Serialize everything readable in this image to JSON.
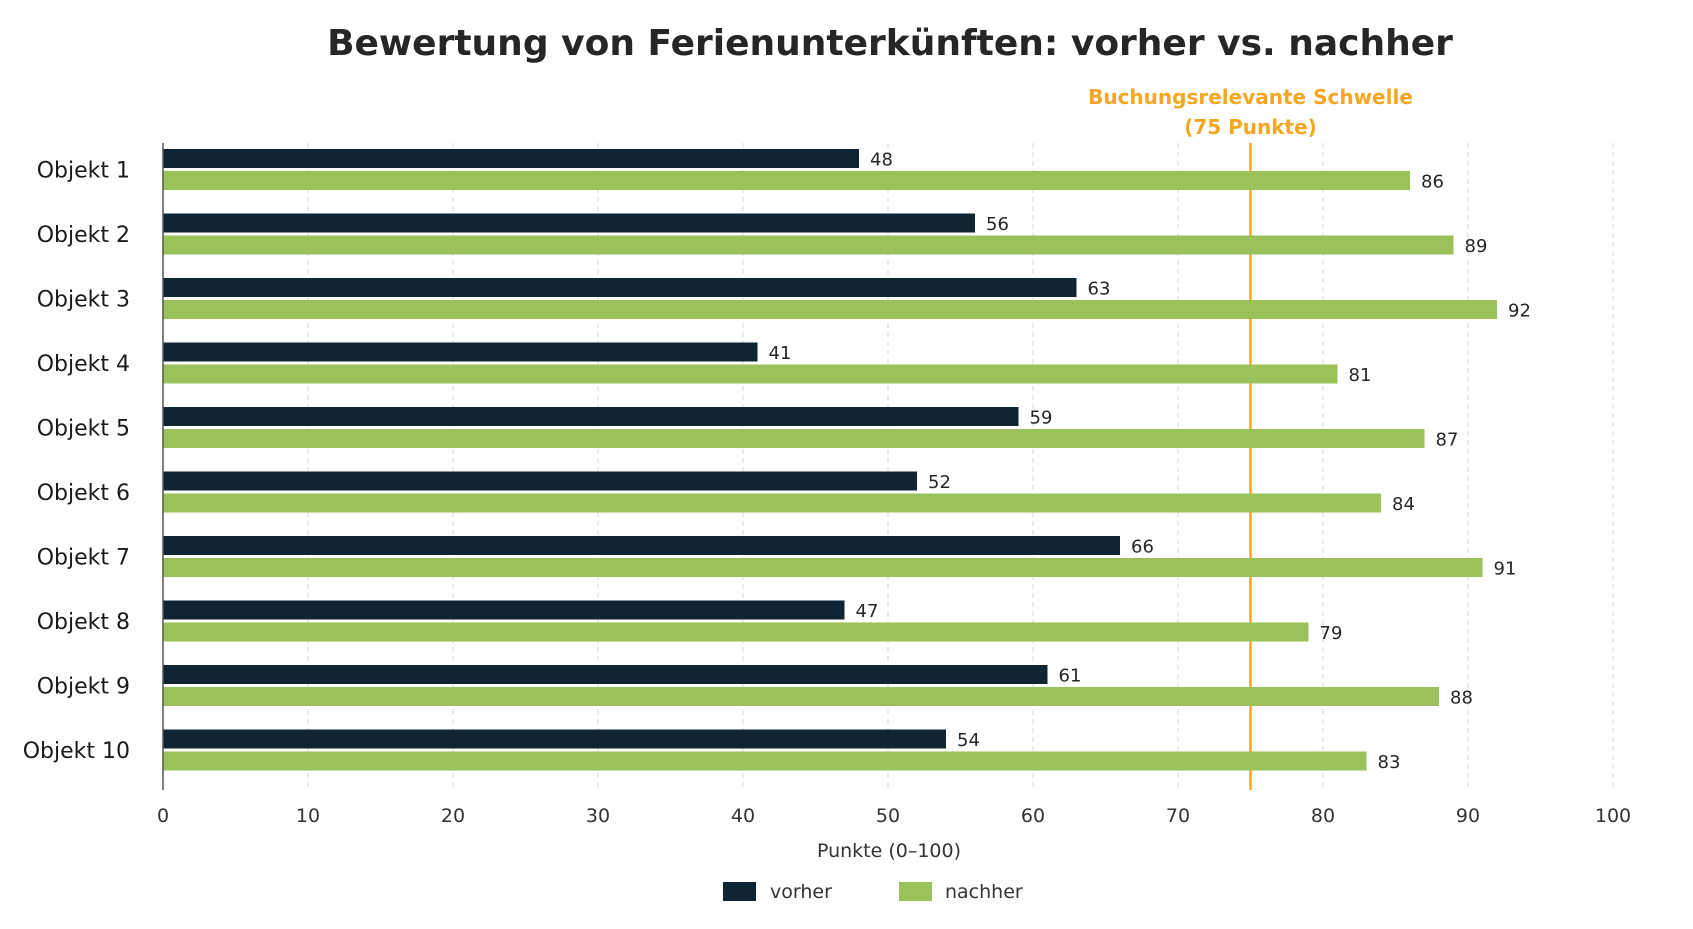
{
  "chart_data": {
    "type": "bar",
    "orientation": "horizontal",
    "title": "Bewertung von Ferienunterkünften: vorher vs. nachher",
    "xlabel": "Punkte (0–100)",
    "ylabel": "",
    "xlim": [
      0,
      100
    ],
    "xticks": [
      0,
      10,
      20,
      30,
      40,
      50,
      60,
      70,
      80,
      90,
      100
    ],
    "grid": "vertical dashed",
    "legend_position": "bottom",
    "categories": [
      "Objekt 1",
      "Objekt 2",
      "Objekt 3",
      "Objekt 4",
      "Objekt 5",
      "Objekt 6",
      "Objekt 7",
      "Objekt 8",
      "Objekt 9",
      "Objekt 10"
    ],
    "series": [
      {
        "name": "vorher",
        "color": "#0f2533",
        "values": [
          48,
          56,
          63,
          41,
          59,
          52,
          66,
          47,
          61,
          54
        ]
      },
      {
        "name": "nachher",
        "color": "#9bc25a",
        "values": [
          86,
          89,
          92,
          81,
          87,
          84,
          91,
          79,
          88,
          83
        ]
      }
    ],
    "threshold": {
      "value": 75,
      "label_line1": "Buchungsrelevante Schwelle",
      "label_line2": "(75 Punkte)",
      "color": "#f5a623"
    }
  }
}
